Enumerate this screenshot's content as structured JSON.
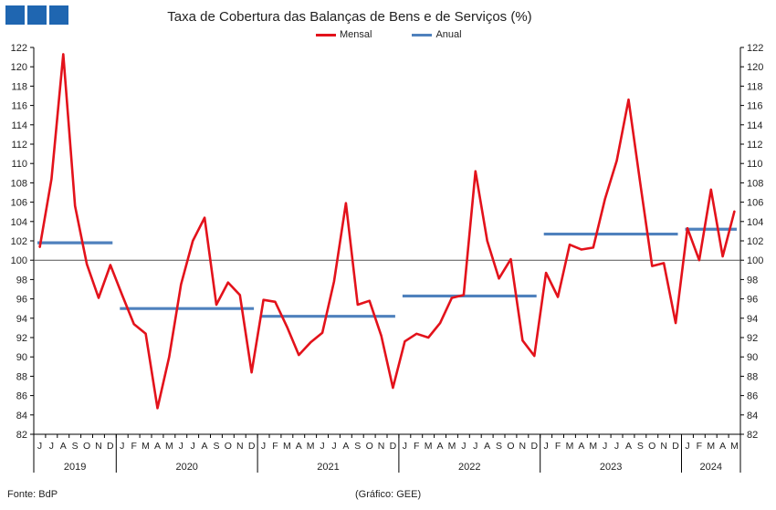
{
  "colors": {
    "logo": "#1f66b1",
    "mensal": "#e3121b",
    "anual": "#4f81bd",
    "axis": "#000000",
    "text": "#222222"
  },
  "footer": {
    "source": "Fonte: BdP",
    "credit": "(Gráfico: GEE)"
  },
  "chart_data": {
    "type": "line",
    "title": "Taxa de Cobertura das Balanças de Bens e de Serviços (%)",
    "ylim": [
      82,
      122
    ],
    "yticks": [
      82,
      84,
      86,
      88,
      90,
      92,
      94,
      96,
      98,
      100,
      102,
      104,
      106,
      108,
      110,
      112,
      114,
      116,
      118,
      120,
      122
    ],
    "y_axis_both_sides": true,
    "reference_line": 100,
    "grid": false,
    "legend_position": "top-center",
    "years": [
      {
        "label": "2019",
        "months": [
          "J",
          "J",
          "A",
          "S",
          "O",
          "N",
          "D"
        ]
      },
      {
        "label": "2020",
        "months": [
          "J",
          "F",
          "M",
          "A",
          "M",
          "J",
          "J",
          "A",
          "S",
          "O",
          "N",
          "D"
        ]
      },
      {
        "label": "2021",
        "months": [
          "J",
          "F",
          "M",
          "A",
          "M",
          "J",
          "J",
          "A",
          "S",
          "O",
          "N",
          "D"
        ]
      },
      {
        "label": "2022",
        "months": [
          "J",
          "F",
          "M",
          "A",
          "M",
          "J",
          "J",
          "A",
          "S",
          "O",
          "N",
          "D"
        ]
      },
      {
        "label": "2023",
        "months": [
          "J",
          "F",
          "M",
          "A",
          "M",
          "J",
          "J",
          "A",
          "S",
          "O",
          "N",
          "D"
        ]
      },
      {
        "label": "2024",
        "months": [
          "J",
          "F",
          "M",
          "A",
          "M"
        ]
      }
    ],
    "series": [
      {
        "name": "Mensal",
        "type": "line",
        "values": [
          101.3,
          108.4,
          121.3,
          105.6,
          99.6,
          96.1,
          99.5,
          96.4,
          93.4,
          92.4,
          84.7,
          90.0,
          97.5,
          102.0,
          104.4,
          95.4,
          97.7,
          96.4,
          88.4,
          95.9,
          95.7,
          93.1,
          90.2,
          91.5,
          92.5,
          97.8,
          105.9,
          95.4,
          95.8,
          92.2,
          86.8,
          91.6,
          92.4,
          92.0,
          93.5,
          96.1,
          96.4,
          109.2,
          102.0,
          98.1,
          100.1,
          91.7,
          90.1,
          98.7,
          96.2,
          101.6,
          101.1,
          101.3,
          106.3,
          110.3,
          116.6,
          107.9,
          99.4,
          99.7,
          93.5,
          103.3,
          100.0,
          107.3,
          100.4,
          105.1
        ]
      },
      {
        "name": "Anual",
        "type": "step",
        "segments": [
          {
            "year": "2019",
            "value": 101.8
          },
          {
            "year": "2020",
            "value": 95.0
          },
          {
            "year": "2021",
            "value": 94.2
          },
          {
            "year": "2022",
            "value": 96.3
          },
          {
            "year": "2023",
            "value": 102.7
          },
          {
            "year": "2024",
            "value": 103.2
          }
        ]
      }
    ]
  }
}
